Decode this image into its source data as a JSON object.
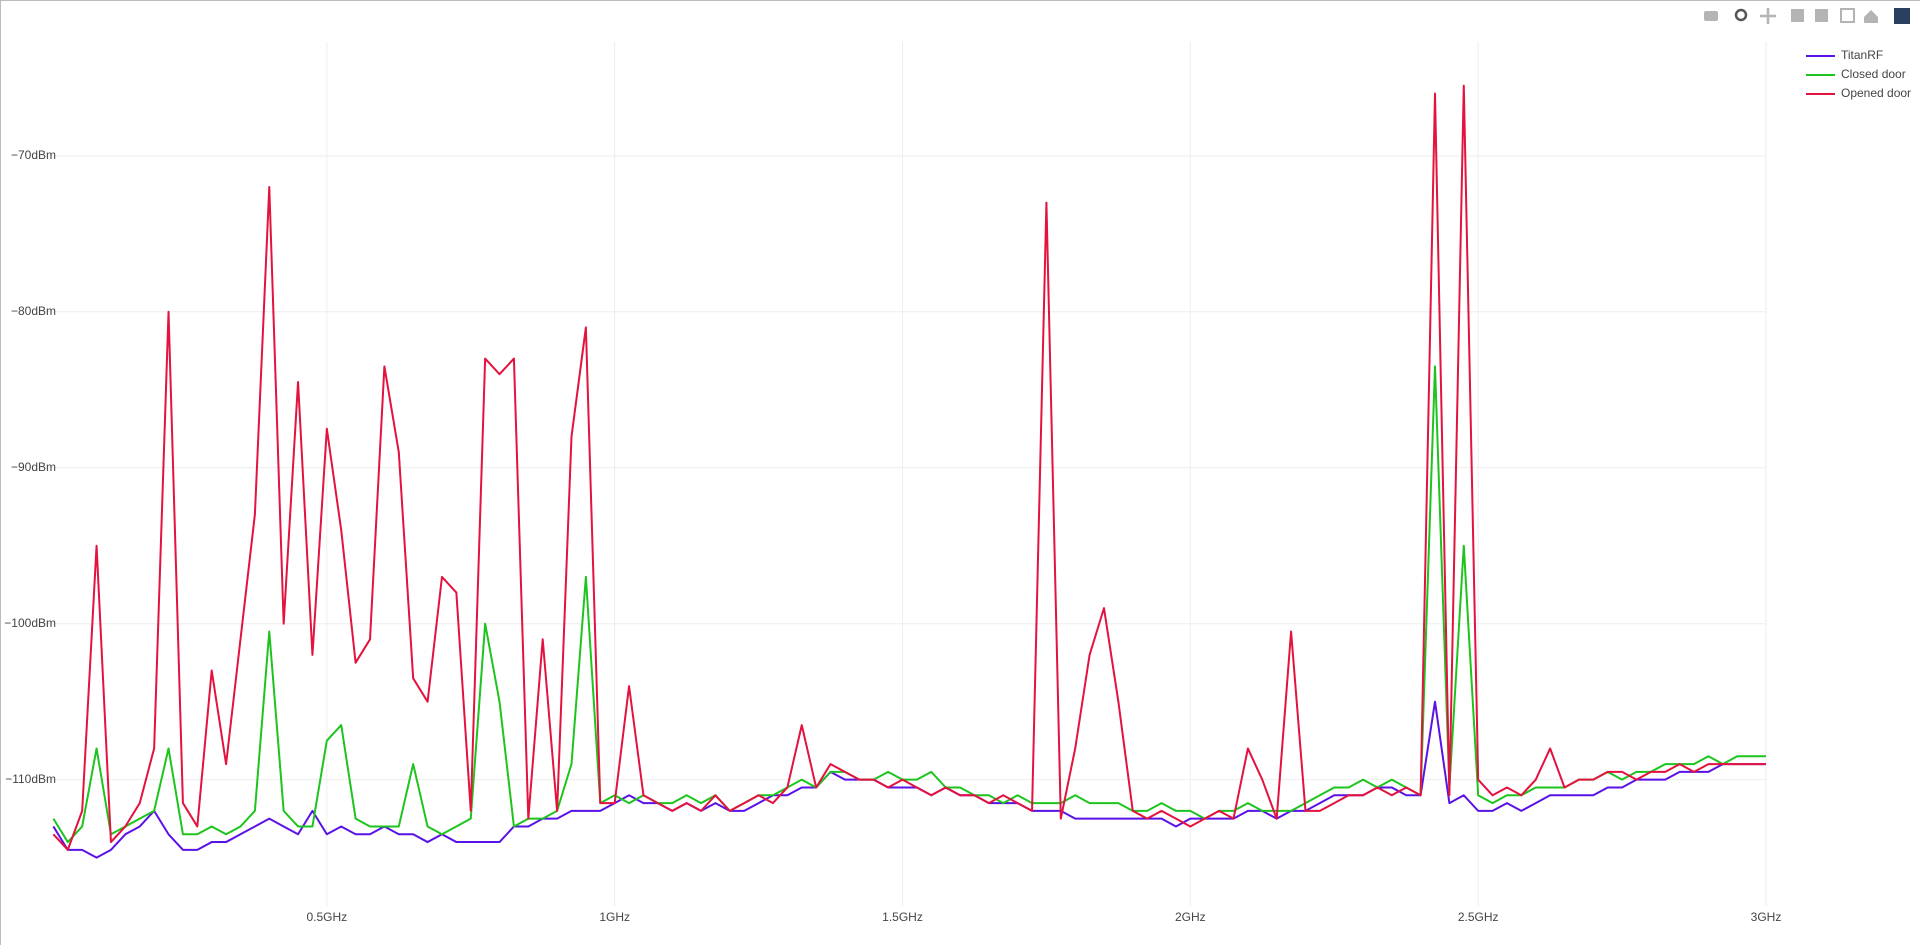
{
  "chart_data": {
    "type": "line",
    "x": [
      0.025,
      0.05,
      0.075,
      0.1,
      0.125,
      0.15,
      0.175,
      0.2,
      0.225,
      0.25,
      0.275,
      0.3,
      0.325,
      0.35,
      0.375,
      0.4,
      0.425,
      0.45,
      0.475,
      0.5,
      0.525,
      0.55,
      0.575,
      0.6,
      0.625,
      0.65,
      0.675,
      0.7,
      0.725,
      0.75,
      0.775,
      0.8,
      0.825,
      0.85,
      0.875,
      0.9,
      0.925,
      0.95,
      0.975,
      1.0,
      1.025,
      1.05,
      1.075,
      1.1,
      1.125,
      1.15,
      1.175,
      1.2,
      1.225,
      1.25,
      1.275,
      1.3,
      1.325,
      1.35,
      1.375,
      1.4,
      1.425,
      1.45,
      1.475,
      1.5,
      1.525,
      1.55,
      1.575,
      1.6,
      1.625,
      1.65,
      1.675,
      1.7,
      1.725,
      1.75,
      1.775,
      1.8,
      1.825,
      1.85,
      1.875,
      1.9,
      1.925,
      1.95,
      1.975,
      2.0,
      2.025,
      2.05,
      2.075,
      2.1,
      2.125,
      2.15,
      2.175,
      2.2,
      2.225,
      2.25,
      2.275,
      2.3,
      2.325,
      2.35,
      2.375,
      2.4,
      2.425,
      2.45,
      2.475,
      2.5,
      2.525,
      2.55,
      2.575,
      2.6,
      2.625,
      2.65,
      2.675,
      2.7,
      2.725,
      2.75,
      2.775,
      2.8,
      2.825,
      2.85,
      2.875,
      2.9,
      2.925,
      2.95,
      2.975,
      3.0
    ],
    "series": [
      {
        "name": "TitanRF",
        "color": "#5a12e6",
        "values": [
          -113,
          -114.5,
          -114.5,
          -115,
          -114.5,
          -113.5,
          -113,
          -112,
          -113.5,
          -114.5,
          -114.5,
          -114,
          -114,
          -113.5,
          -113,
          -112.5,
          -113,
          -113.5,
          -112,
          -113.5,
          -113,
          -113.5,
          -113.5,
          -113,
          -113.5,
          -113.5,
          -114,
          -113.5,
          -114,
          -114,
          -114,
          -114,
          -113,
          -113,
          -112.5,
          -112.5,
          -112,
          -112,
          -112,
          -111.5,
          -111,
          -111.5,
          -111.5,
          -112,
          -111.5,
          -112,
          -111.5,
          -112,
          -112,
          -111.5,
          -111,
          -111,
          -110.5,
          -110.5,
          -109.5,
          -110,
          -110,
          -110,
          -110.5,
          -110.5,
          -110.5,
          -111,
          -110.5,
          -111,
          -111,
          -111.5,
          -111.5,
          -111.5,
          -112,
          -112,
          -112,
          -112.5,
          -112.5,
          -112.5,
          -112.5,
          -112.5,
          -112.5,
          -112.5,
          -113,
          -112.5,
          -112.5,
          -112.5,
          -112.5,
          -112,
          -112,
          -112.5,
          -112,
          -112,
          -111.5,
          -111,
          -111,
          -111,
          -110.5,
          -110.5,
          -111,
          -111,
          -105,
          -111.5,
          -111,
          -112,
          -112,
          -111.5,
          -112,
          -111.5,
          -111,
          -111,
          -111,
          -111,
          -110.5,
          -110.5,
          -110,
          -110,
          -110,
          -109.5,
          -109.5,
          -109.5,
          -109,
          -109,
          -109,
          -109
        ]
      },
      {
        "name": "Closed door",
        "color": "#1ec41e",
        "values": [
          -112.5,
          -114,
          -113,
          -108,
          -113.5,
          -113,
          -112.5,
          -112,
          -108,
          -113.5,
          -113.5,
          -113,
          -113.5,
          -113,
          -112,
          -100.5,
          -112,
          -113,
          -113,
          -107.5,
          -106.5,
          -112.5,
          -113,
          -113,
          -113,
          -109,
          -113,
          -113.5,
          -113,
          -112.5,
          -100,
          -105,
          -113,
          -112.5,
          -112.5,
          -112,
          -109,
          -97,
          -111.5,
          -111,
          -111.5,
          -111,
          -111.5,
          -111.5,
          -111,
          -111.5,
          -111,
          -112,
          -111.5,
          -111,
          -111,
          -110.5,
          -110,
          -110.5,
          -109.5,
          -109.5,
          -110,
          -110,
          -109.5,
          -110,
          -110,
          -109.5,
          -110.5,
          -110.5,
          -111,
          -111,
          -111.5,
          -111,
          -111.5,
          -111.5,
          -111.5,
          -111,
          -111.5,
          -111.5,
          -111.5,
          -112,
          -112,
          -111.5,
          -112,
          -112,
          -112.5,
          -112,
          -112,
          -111.5,
          -112,
          -112,
          -112,
          -111.5,
          -111,
          -110.5,
          -110.5,
          -110,
          -110.5,
          -110,
          -110.5,
          -111,
          -83.5,
          -110.5,
          -95,
          -111,
          -111.5,
          -111,
          -111,
          -110.5,
          -110.5,
          -110.5,
          -110,
          -110,
          -109.5,
          -110,
          -109.5,
          -109.5,
          -109,
          -109,
          -109,
          -108.5,
          -109,
          -108.5,
          -108.5,
          -108.5
        ]
      },
      {
        "name": "Opened door",
        "color": "#e3123e",
        "values": [
          -113.5,
          -114.5,
          -112,
          -95,
          -114,
          -113,
          -111.5,
          -108,
          -80,
          -111.5,
          -113,
          -103,
          -109,
          -101,
          -93,
          -72,
          -100,
          -84.5,
          -102,
          -87.5,
          -94,
          -102.5,
          -101,
          -83.5,
          -89,
          -103.5,
          -105,
          -97,
          -98,
          -112,
          -83,
          -84,
          -83,
          -112.5,
          -101,
          -112,
          -88,
          -81,
          -111.5,
          -111.5,
          -104,
          -111,
          -111.5,
          -112,
          -111.5,
          -112,
          -111,
          -112,
          -111.5,
          -111,
          -111.5,
          -110.5,
          -106.5,
          -110.5,
          -109,
          -109.5,
          -110,
          -110,
          -110.5,
          -110,
          -110.5,
          -111,
          -110.5,
          -111,
          -111,
          -111.5,
          -111,
          -111.5,
          -112,
          -73,
          -112.5,
          -108,
          -102,
          -99,
          -105,
          -112,
          -112.5,
          -112,
          -112.5,
          -113,
          -112.5,
          -112,
          -112.5,
          -108,
          -110,
          -112.5,
          -100.5,
          -112,
          -112,
          -111.5,
          -111,
          -111,
          -110.5,
          -111,
          -110.5,
          -111,
          -66,
          -111,
          -65.5,
          -110,
          -111,
          -110.5,
          -111,
          -110,
          -108,
          -110.5,
          -110,
          -110,
          -109.5,
          -109.5,
          -110,
          -109.5,
          -109.5,
          -109,
          -109.5,
          -109,
          -109,
          -109,
          -109,
          -109
        ]
      }
    ],
    "xlim": [
      0,
      3
    ],
    "ylim": [
      -118.1,
      -62.7
    ],
    "xticks": [
      {
        "value": 0.5,
        "label": "0.5GHz"
      },
      {
        "value": 1,
        "label": "1GHz"
      },
      {
        "value": 1.5,
        "label": "1.5GHz"
      },
      {
        "value": 2,
        "label": "2GHz"
      },
      {
        "value": 2.5,
        "label": "2.5GHz"
      },
      {
        "value": 3,
        "label": "3GHz"
      }
    ],
    "yticks": [
      {
        "value": -110,
        "label": "−110dBm"
      },
      {
        "value": -100,
        "label": "−100dBm"
      },
      {
        "value": -90,
        "label": "−90dBm"
      },
      {
        "value": -80,
        "label": "−80dBm"
      },
      {
        "value": -70,
        "label": "−70dBm"
      }
    ],
    "grid": true,
    "legend": "top-right"
  }
}
